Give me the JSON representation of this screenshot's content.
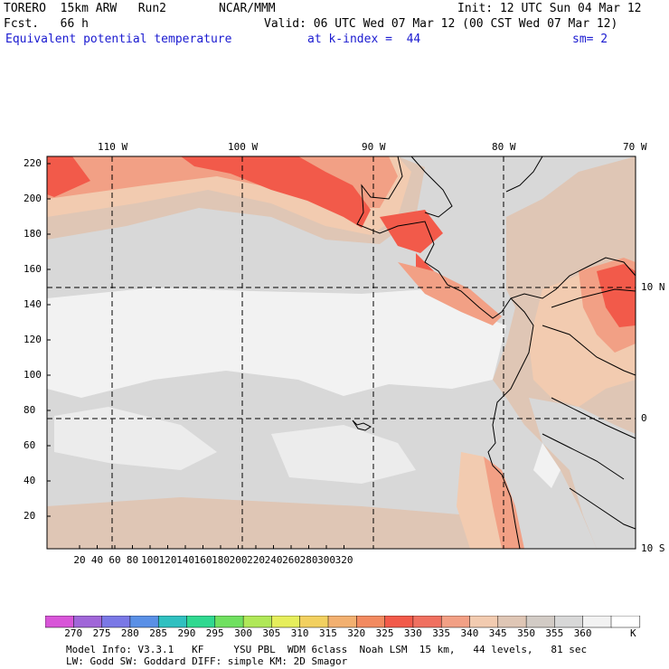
{
  "header": {
    "model": "TORERO  15km ARW   Run2",
    "org": "NCAR/MMM",
    "init": "Init: 12 UTC Sun 04 Mar 12",
    "fcst": "Fcst.   66 h",
    "valid": "Valid: 06 UTC Wed 07 Mar 12 (00 CST Wed 07 Mar 12)",
    "field": "Equivalent potential temperature",
    "level": "at k-index =  44",
    "smooth": "sm= 2"
  },
  "map": {
    "top_axis": [
      "110 W",
      "100 W",
      "90 W",
      "80 W",
      "70 W"
    ],
    "right_axis": [
      "10 N",
      "0",
      "10 S"
    ],
    "left_axis": [
      "220",
      "200",
      "180",
      "160",
      "140",
      "120",
      "100",
      "80",
      "60",
      "40",
      "20"
    ],
    "bottom_axis": [
      "20",
      "40",
      "60",
      "80",
      "100",
      "120",
      "140",
      "160",
      "180",
      "200",
      "220",
      "240",
      "260",
      "280",
      "300",
      "320"
    ],
    "colors": {
      "very_light": "#f2f2f2",
      "light_gray": "#d8d8d8",
      "mid_gray": "#cdc8c4",
      "tan": "#dfc6b5",
      "peach": "#f2cbb0",
      "salmon": "#f2a085",
      "red": "#f25a4a",
      "coast": "#000000"
    }
  },
  "colorbar": {
    "colors": [
      "#d855d8",
      "#a066d8",
      "#7a78e6",
      "#5a90e6",
      "#30c0c0",
      "#30d890",
      "#70e060",
      "#b0e858",
      "#e6ee5c",
      "#f2d060",
      "#f2b070",
      "#f28a60",
      "#f25a4a",
      "#f07060",
      "#f2a085",
      "#f2cbb0",
      "#dfc6b5",
      "#d2cbc5",
      "#d8d8d8",
      "#f2f2f2",
      "#ffffff"
    ],
    "labels": [
      "270",
      "275",
      "280",
      "285",
      "290",
      "295",
      "300",
      "305",
      "310",
      "315",
      "320",
      "325",
      "330",
      "335",
      "340",
      "345",
      "350",
      "355",
      "360"
    ],
    "unit": "K"
  },
  "footer": {
    "line1": "Model Info: V3.3.1   KF     YSU PBL  WDM 6class  Noah LSM  15 km,   44 levels,   81 sec",
    "line2": "LW: Godd SW: Goddard DIFF: simple KM: 2D Smagor"
  }
}
